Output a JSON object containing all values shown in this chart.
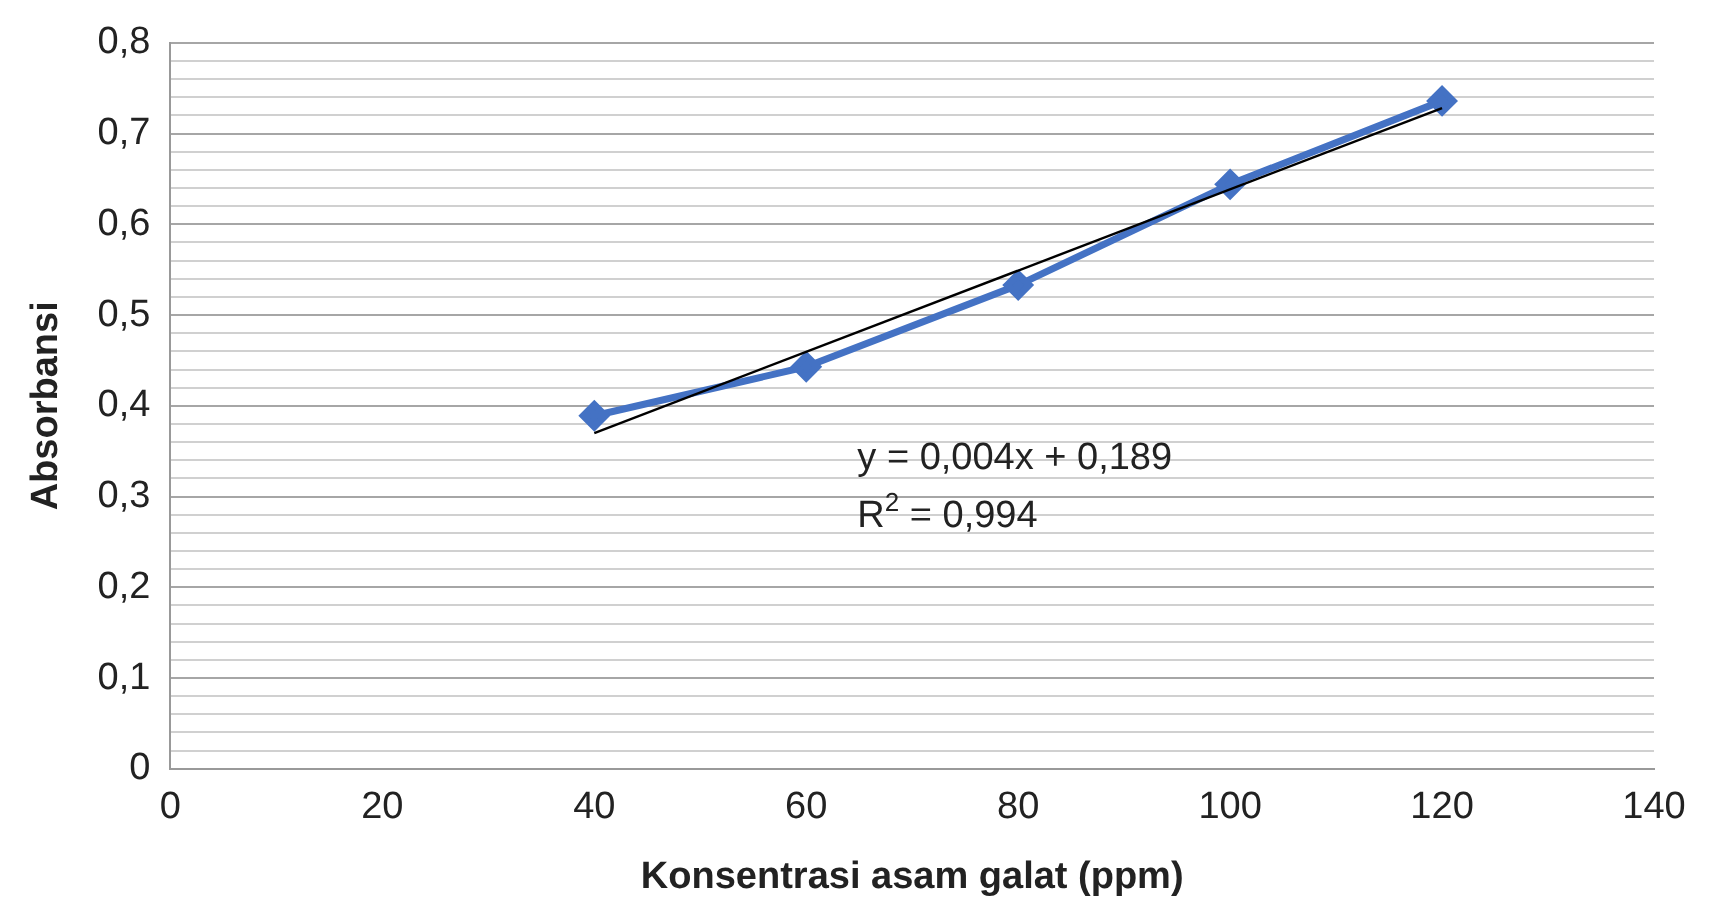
{
  "chart_data": {
    "type": "line",
    "xlabel": "Konsentrasi asam galat (ppm)",
    "ylabel": "Absorbansi",
    "series": [
      {
        "color": "#4472c4",
        "x": [
          40,
          60,
          80,
          100,
          120
        ],
        "values": [
          0.389,
          0.443,
          0.533,
          0.644,
          0.736
        ],
        "marker": "diamond"
      },
      {
        "color": "#000000",
        "x": [
          40,
          120
        ],
        "values": [
          0.37,
          0.728
        ],
        "marker": "none"
      }
    ],
    "xlim": [
      0,
      140
    ],
    "xticks": [
      0,
      20,
      40,
      60,
      80,
      100,
      120,
      140
    ],
    "ylim": [
      0,
      0.8
    ],
    "yticks": [
      {
        "value": 0,
        "label": "0"
      },
      {
        "value": 0.02,
        "label": null
      },
      {
        "value": 0.04,
        "label": null
      },
      {
        "value": 0.06,
        "label": null
      },
      {
        "value": 0.08,
        "label": null
      },
      {
        "value": 0.1,
        "label": "0,1"
      },
      {
        "value": 0.12,
        "label": null
      },
      {
        "value": 0.14,
        "label": null
      },
      {
        "value": 0.16,
        "label": null
      },
      {
        "value": 0.18,
        "label": null
      },
      {
        "value": 0.2,
        "label": "0,2"
      },
      {
        "value": 0.22,
        "label": null
      },
      {
        "value": 0.24,
        "label": null
      },
      {
        "value": 0.26,
        "label": null
      },
      {
        "value": 0.28,
        "label": null
      },
      {
        "value": 0.3,
        "label": "0,3"
      },
      {
        "value": 0.32,
        "label": null
      },
      {
        "value": 0.34,
        "label": null
      },
      {
        "value": 0.36,
        "label": null
      },
      {
        "value": 0.38,
        "label": null
      },
      {
        "value": 0.4,
        "label": "0,4"
      },
      {
        "value": 0.42,
        "label": null
      },
      {
        "value": 0.44,
        "label": null
      },
      {
        "value": 0.46,
        "label": null
      },
      {
        "value": 0.48,
        "label": null
      },
      {
        "value": 0.5,
        "label": "0,5"
      },
      {
        "value": 0.52,
        "label": null
      },
      {
        "value": 0.54,
        "label": null
      },
      {
        "value": 0.56,
        "label": null
      },
      {
        "value": 0.58,
        "label": null
      },
      {
        "value": 0.6,
        "label": "0,6"
      },
      {
        "value": 0.62,
        "label": null
      },
      {
        "value": 0.64,
        "label": null
      },
      {
        "value": 0.66,
        "label": null
      },
      {
        "value": 0.68,
        "label": null
      },
      {
        "value": 0.7,
        "label": "0,7"
      },
      {
        "value": 0.72,
        "label": null
      },
      {
        "value": 0.74,
        "label": null
      },
      {
        "value": 0.76,
        "label": null
      },
      {
        "value": 0.78,
        "label": null
      },
      {
        "value": 0.8,
        "label": "0,8"
      }
    ],
    "grid": "y",
    "legend": false,
    "annotations": [
      "y = 0,004x + 0,189",
      "R$^{2}$ = 0,994"
    ]
  }
}
